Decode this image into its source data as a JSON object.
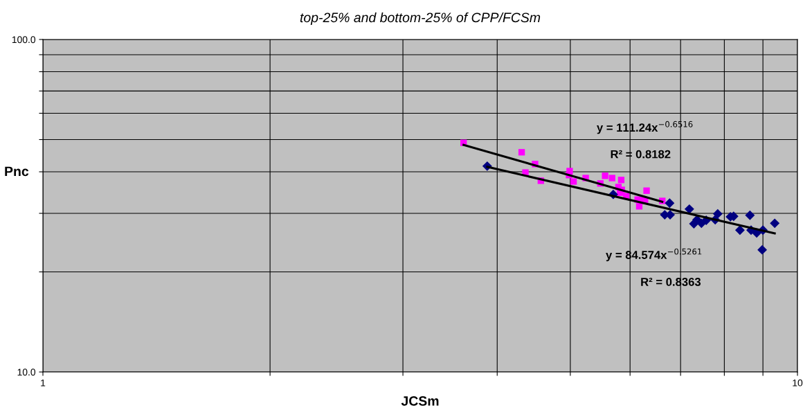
{
  "chart_data": {
    "type": "scatter",
    "title": "top-25% and bottom-25% of CPP/FCSm",
    "xlabel": "JCSm",
    "ylabel": "Pnc",
    "log": "xy",
    "grid": true,
    "legend": false,
    "xlim": [
      1,
      10
    ],
    "xticks": [
      1,
      {
        "value": 2,
        "label": null
      },
      {
        "value": 3,
        "label": null
      },
      {
        "value": 4,
        "label": null
      },
      {
        "value": 5,
        "label": null
      },
      {
        "value": 6,
        "label": null
      },
      {
        "value": 7,
        "label": null
      },
      {
        "value": 8,
        "label": null
      },
      {
        "value": 9,
        "label": null
      },
      10
    ],
    "ylim": [
      10,
      100
    ],
    "yticks": [
      {
        "value": 10,
        "label": "10.0"
      },
      {
        "value": 20,
        "label": null
      },
      {
        "value": 30,
        "label": null
      },
      {
        "value": 40,
        "label": null
      },
      {
        "value": 50,
        "label": null
      },
      {
        "value": 60,
        "label": null
      },
      {
        "value": 70,
        "label": null
      },
      {
        "value": 80,
        "label": null
      },
      {
        "value": 90,
        "label": null
      },
      {
        "value": 100,
        "label": "100.0"
      }
    ],
    "series": [
      {
        "color": "#ff00ff",
        "marker": "square",
        "x": [
          3.61,
          4.31,
          4.36,
          4.49,
          4.57,
          4.99,
          4.98,
          5.05,
          5.24,
          5.48,
          5.56,
          5.68,
          5.79,
          5.84,
          5.82,
          5.85,
          5.93,
          6.14,
          6.17,
          6.22,
          6.31,
          6.28,
          6.62
        ],
        "values": [
          48.9,
          45.8,
          39.8,
          42.2,
          37.6,
          40.2,
          39.1,
          37.4,
          38.3,
          36.9,
          38.9,
          38.3,
          36.0,
          37.8,
          34.6,
          35.3,
          33.8,
          33.0,
          31.5,
          32.9,
          35.1,
          32.7,
          32.7
        ]
      },
      {
        "color": "#000080",
        "marker": "diamond",
        "x": [
          3.88,
          5.7,
          6.77,
          6.67,
          6.78,
          7.19,
          7.29,
          7.36,
          7.46,
          7.57,
          7.78,
          7.84,
          8.15,
          8.23,
          8.39,
          8.65,
          8.68,
          8.83,
          9.0,
          8.98,
          9.33
        ],
        "values": [
          41.6,
          34.2,
          32.2,
          29.7,
          29.7,
          30.9,
          27.9,
          28.7,
          28.0,
          28.6,
          28.7,
          29.9,
          29.3,
          29.4,
          26.7,
          29.6,
          26.7,
          26.2,
          26.7,
          23.3,
          28.0
        ]
      },
      {
        "type": "line",
        "color": "#000000",
        "marker": "none",
        "x": [
          3.61,
          6.62
        ],
        "values": [
          48.2,
          32.5
        ]
      },
      {
        "type": "line",
        "color": "#000000",
        "marker": "none",
        "x": [
          3.88,
          9.33
        ],
        "values": [
          41.4,
          26.1
        ]
      }
    ],
    "annotations": [
      "y = 111.24x$^{−0.6516}$",
      "R² = 0.8182",
      "y = 84.574x$^{−0.5261}$",
      "R² = 0.8363"
    ]
  }
}
